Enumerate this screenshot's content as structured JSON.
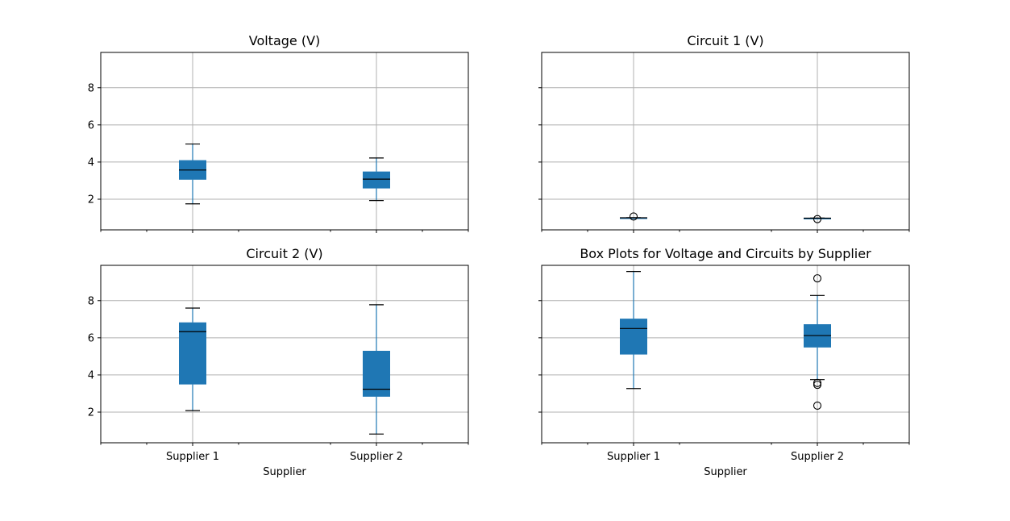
{
  "chart_data": [
    {
      "type": "box",
      "title": "Voltage (V)",
      "xlabel": "",
      "ylabel": "",
      "categories": [
        "Supplier 1",
        "Supplier 2"
      ],
      "ylim": [
        0.35,
        9.9
      ],
      "yticks": [
        2,
        4,
        6,
        8
      ],
      "grid": true,
      "show_xticklabels": false,
      "show_yticklabels": true,
      "boxes": [
        {
          "category": "Supplier 1",
          "whislo": 1.75,
          "q1": 3.05,
          "med": 3.57,
          "q3": 4.1,
          "whishi": 4.97,
          "fliers": []
        },
        {
          "category": "Supplier 2",
          "whislo": 1.93,
          "q1": 2.58,
          "med": 3.08,
          "q3": 3.49,
          "whishi": 4.22,
          "fliers": []
        }
      ]
    },
    {
      "type": "box",
      "title": "Circuit 1 (V)",
      "xlabel": "",
      "ylabel": "",
      "categories": [
        "Supplier 1",
        "Supplier 2"
      ],
      "ylim": [
        0.35,
        9.9
      ],
      "yticks": [
        2,
        4,
        6,
        8
      ],
      "grid": true,
      "show_xticklabels": false,
      "show_yticklabels": false,
      "boxes": [
        {
          "category": "Supplier 1",
          "whislo": 1.0,
          "q1": 1.0,
          "med": 1.0,
          "q3": 1.0,
          "whishi": 1.0,
          "fliers": [
            1.07
          ]
        },
        {
          "category": "Supplier 2",
          "whislo": 0.98,
          "q1": 0.98,
          "med": 0.98,
          "q3": 0.98,
          "whishi": 0.98,
          "fliers": [
            0.93
          ]
        }
      ]
    },
    {
      "type": "box",
      "title": "Circuit 2 (V)",
      "xlabel": "Supplier",
      "ylabel": "",
      "categories": [
        "Supplier 1",
        "Supplier 2"
      ],
      "ylim": [
        0.35,
        9.9
      ],
      "yticks": [
        2,
        4,
        6,
        8
      ],
      "grid": true,
      "show_xticklabels": true,
      "show_yticklabels": true,
      "boxes": [
        {
          "category": "Supplier 1",
          "whislo": 2.08,
          "q1": 3.49,
          "med": 6.33,
          "q3": 6.83,
          "whishi": 7.6,
          "fliers": []
        },
        {
          "category": "Supplier 2",
          "whislo": 0.82,
          "q1": 2.83,
          "med": 3.23,
          "q3": 5.3,
          "whishi": 7.78,
          "fliers": []
        }
      ]
    },
    {
      "type": "box",
      "title": "Box Plots for Voltage and Circuits by Supplier",
      "xlabel": "Supplier",
      "ylabel": "",
      "categories": [
        "Supplier 1",
        "Supplier 2"
      ],
      "ylim": [
        0.35,
        9.9
      ],
      "yticks": [
        2,
        4,
        6,
        8
      ],
      "grid": true,
      "show_xticklabels": true,
      "show_yticklabels": false,
      "boxes": [
        {
          "category": "Supplier 1",
          "whislo": 3.27,
          "q1": 5.1,
          "med": 6.5,
          "q3": 7.03,
          "whishi": 9.57,
          "fliers": []
        },
        {
          "category": "Supplier 2",
          "whislo": 3.75,
          "q1": 5.48,
          "med": 6.12,
          "q3": 6.73,
          "whishi": 8.28,
          "fliers": [
            9.2,
            3.57,
            3.47,
            2.35
          ]
        }
      ]
    }
  ],
  "colors": {
    "box_fill": "#1f77b4",
    "whisker": "#1f77b4",
    "median": "#000000",
    "cap": "#000000",
    "grid": "#b0b0b0",
    "axes": "#000000"
  }
}
